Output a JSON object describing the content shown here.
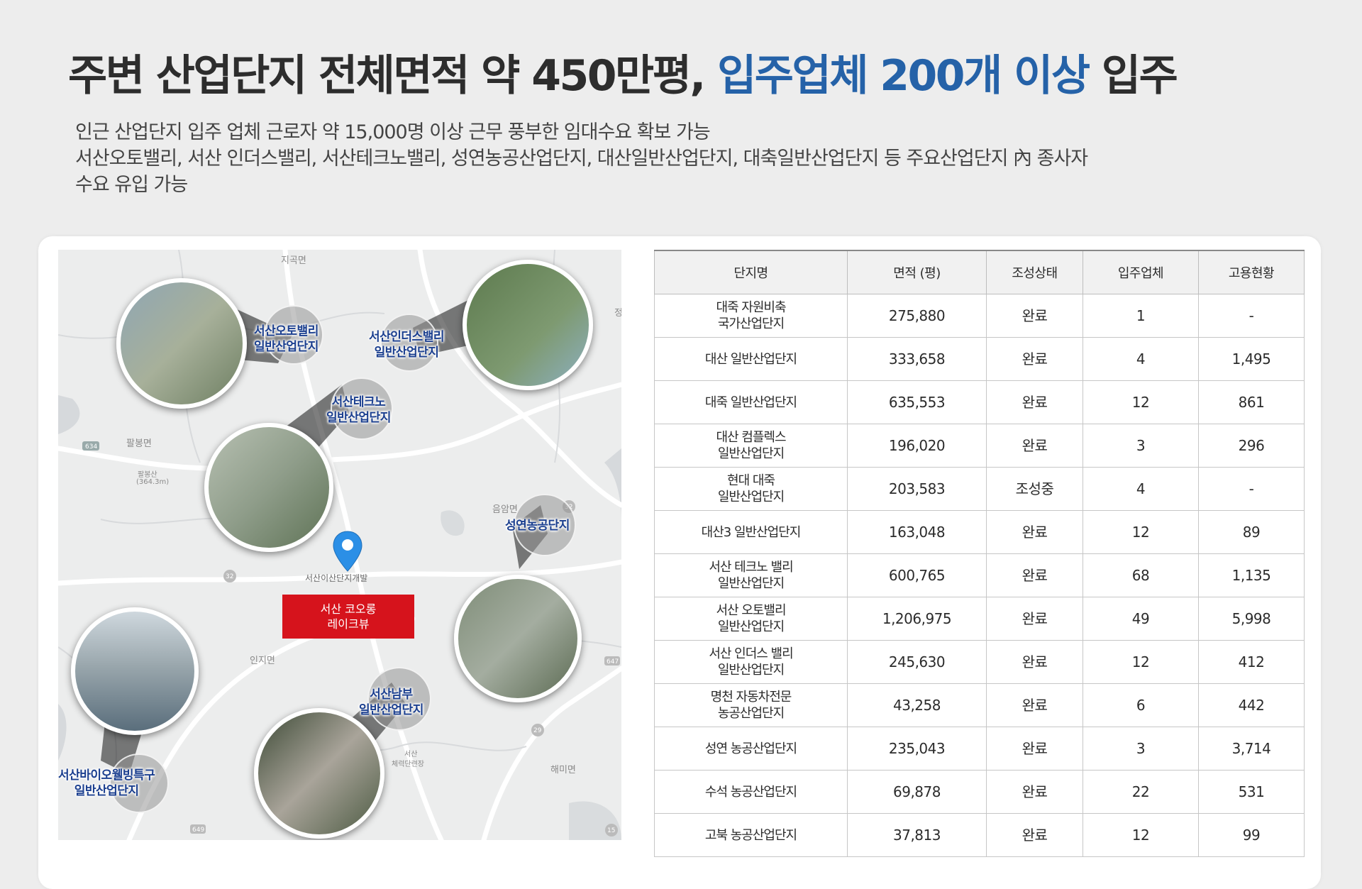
{
  "header": {
    "title_part1": "주변 산업단지 전체면적 약 450만평, ",
    "title_accent": "입주업체 200개 이상",
    "title_part2": " 입주",
    "sub_lines": [
      "인근 산업단지 입주 업체 근로자 약 15,000명 이상 근무 풍부한 임대수요 확보 가능",
      "서산오토밸리, 서산 인더스밸리, 서산테크노밸리, 성연농공산업단지, 대산일반산업단지, 대축일반산업단지 등 주요산업단지 內 종사자",
      "수요 유입 가능"
    ]
  },
  "colors": {
    "accent": "#2562a8",
    "site_label_bg": "#d6131c",
    "area_label": "#1b3f8f",
    "pin": "#2b8fe6"
  },
  "map": {
    "place_names": [
      "지곡면",
      "팔봉면",
      "팔봉산",
      "(364.3m)",
      "음암면",
      "인지면",
      "해미면",
      "서산",
      "체력단련장",
      "정"
    ],
    "route_numbers": [
      "634",
      "32",
      "647",
      "29",
      "649",
      "15",
      "32"
    ],
    "site": {
      "caption": "서산이산단지개발",
      "label_line1": "서산 코오롱",
      "label_line2": "레이크뷰",
      "pin_icon": "location-pin-icon"
    },
    "areas": [
      {
        "line1": "서산오토밸리",
        "line2": "일반산업단지"
      },
      {
        "line1": "서산인더스밸리",
        "line2": "일반산업단지"
      },
      {
        "line1": "서산테크노",
        "line2": "일반산업단지"
      },
      {
        "line1": "성연농공단지",
        "line2": ""
      },
      {
        "line1": "서산남부",
        "line2": "일반산업단지"
      },
      {
        "line1": "서산바이오웰빙특구",
        "line2": "일반산업단지"
      }
    ]
  },
  "table": {
    "headers": [
      "단지명",
      "면적 (평)",
      "조성상태",
      "입주업체",
      "고용현황"
    ],
    "rows": [
      {
        "name": "대죽 자원비축\n국가산업단지",
        "area": "275,880",
        "status": "완료",
        "companies": "1",
        "employment": "-"
      },
      {
        "name": "대산 일반산업단지",
        "area": "333,658",
        "status": "완료",
        "companies": "4",
        "employment": "1,495"
      },
      {
        "name": "대죽 일반산업단지",
        "area": "635,553",
        "status": "완료",
        "companies": "12",
        "employment": "861"
      },
      {
        "name": "대산 컴플렉스\n일반산업단지",
        "area": "196,020",
        "status": "완료",
        "companies": "3",
        "employment": "296"
      },
      {
        "name": "현대 대죽\n일반산업단지",
        "area": "203,583",
        "status": "조성중",
        "companies": "4",
        "employment": "-"
      },
      {
        "name": "대산3 일반산업단지",
        "area": "163,048",
        "status": "완료",
        "companies": "12",
        "employment": "89"
      },
      {
        "name": "서산 테크노 밸리\n일반산업단지",
        "area": "600,765",
        "status": "완료",
        "companies": "68",
        "employment": "1,135"
      },
      {
        "name": "서산 오토밸리\n일반산업단지",
        "area": "1,206,975",
        "status": "완료",
        "companies": "49",
        "employment": "5,998"
      },
      {
        "name": "서산 인더스 밸리\n일반산업단지",
        "area": "245,630",
        "status": "완료",
        "companies": "12",
        "employment": "412"
      },
      {
        "name": "명천 자동차전문\n농공산업단지",
        "area": "43,258",
        "status": "완료",
        "companies": "6",
        "employment": "442"
      },
      {
        "name": "성연 농공산업단지",
        "area": "235,043",
        "status": "완료",
        "companies": "3",
        "employment": "3,714"
      },
      {
        "name": "수석 농공산업단지",
        "area": "69,878",
        "status": "완료",
        "companies": "22",
        "employment": "531"
      },
      {
        "name": "고북 농공산업단지",
        "area": "37,813",
        "status": "완료",
        "companies": "12",
        "employment": "99"
      }
    ]
  }
}
